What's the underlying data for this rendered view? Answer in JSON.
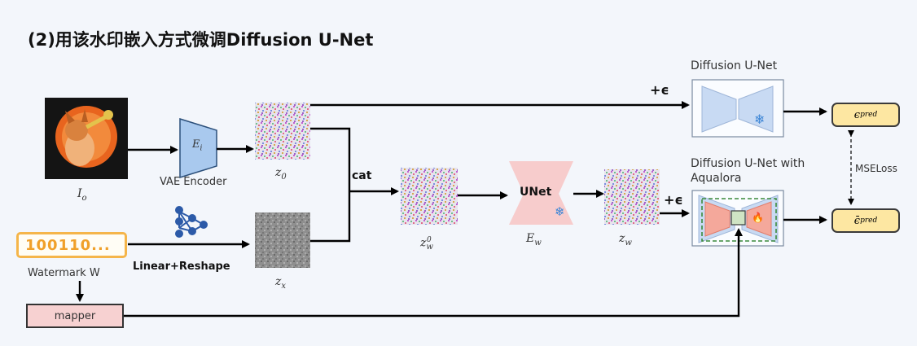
{
  "title": "(2)用该水印嵌入方式微调Diffusion U-Net",
  "labels": {
    "io": "I",
    "io_sub": "o",
    "vae_encoder": "VAE Encoder",
    "ei": "E",
    "ei_sub": "i",
    "z0": "z",
    "z0_sub": "0",
    "zx": "z",
    "zx_sub": "x",
    "cat": "cat",
    "zw0": "z",
    "zw0_sub": "w",
    "zw0_sup": "0",
    "unet": "UNet",
    "ew": "E",
    "ew_sub": "w",
    "zw": "z",
    "zw_sub": "w",
    "plus_eps_top": "+ϵ",
    "plus_eps_bottom": "+ϵ",
    "diffusion_unet": "Diffusion U-Net",
    "diffusion_unet_aqualora_1": "Diffusion U-Net with",
    "diffusion_unet_aqualora_2": "Aqualora",
    "eps_pred": "ϵ",
    "eps_pred_sub": "pred",
    "eps_bar_pred": "ϵ̄",
    "eps_bar_pred_sub": "pred",
    "mse_loss": "MSELoss",
    "watermark_bits": "100110...",
    "watermark_w": "Watermark W",
    "linear_reshape": "Linear+Reshape",
    "mapper": "mapper"
  },
  "colors": {
    "encoder_fill": "#a9c9ee",
    "unet_fill": "#f7cccc",
    "pred_fill": "#fde7a2",
    "lora_fill": "#f4a89b",
    "accent_orange": "#f5b54a",
    "arrow": "#000000"
  },
  "icons": {
    "snowflake": "❄",
    "fire": "🔥"
  }
}
